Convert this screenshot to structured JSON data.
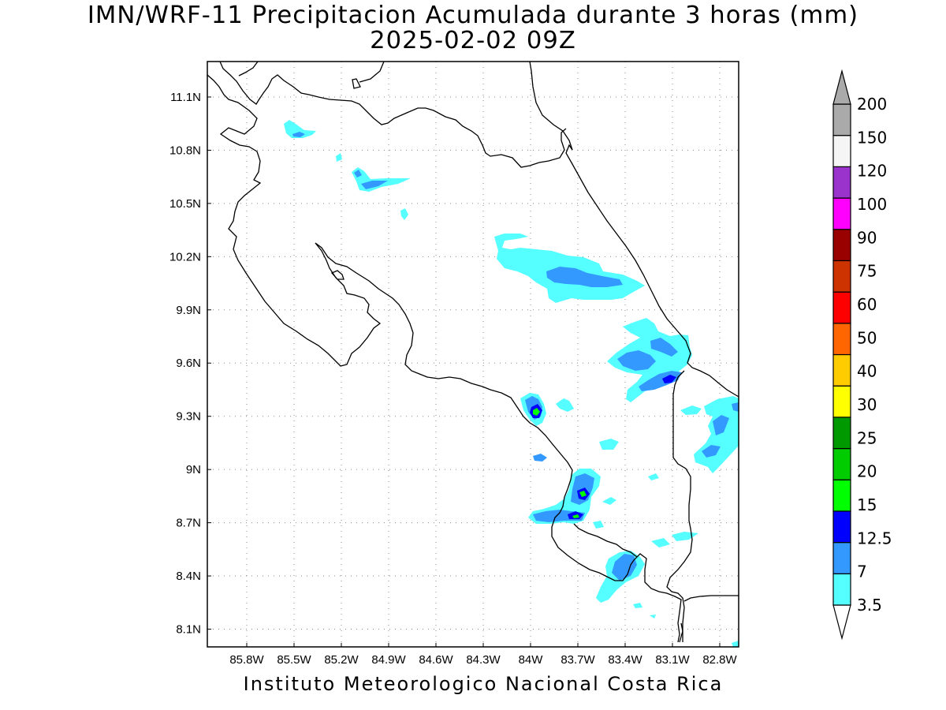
{
  "title": {
    "line1": "IMN/WRF-11 Precipitacion Acumulada durante 3 horas (mm)",
    "line2": "2025-02-02 09Z"
  },
  "credit": "Instituto Meteorologico Nacional Costa Rica",
  "map": {
    "lon_range": [
      -86.05,
      -82.68
    ],
    "lat_range": [
      8.0,
      11.3
    ],
    "grid": "dotted",
    "lon_ticks": [
      {
        "value": -85.8,
        "label": "85.8W"
      },
      {
        "value": -85.5,
        "label": "85.5W"
      },
      {
        "value": -85.2,
        "label": "85.2W"
      },
      {
        "value": -84.9,
        "label": "84.9W"
      },
      {
        "value": -84.6,
        "label": "84.6W"
      },
      {
        "value": -84.3,
        "label": "84.3W"
      },
      {
        "value": -84.0,
        "label": "84W"
      },
      {
        "value": -83.7,
        "label": "83.7W"
      },
      {
        "value": -83.4,
        "label": "83.4W"
      },
      {
        "value": -83.1,
        "label": "83.1W"
      },
      {
        "value": -82.8,
        "label": "82.8W"
      }
    ],
    "lat_ticks": [
      {
        "value": 8.1,
        "label": "8.1N"
      },
      {
        "value": 8.4,
        "label": "8.4N"
      },
      {
        "value": 8.7,
        "label": "8.7N"
      },
      {
        "value": 9.0,
        "label": "9N"
      },
      {
        "value": 9.3,
        "label": "9.3N"
      },
      {
        "value": 9.6,
        "label": "9.6N"
      },
      {
        "value": 9.9,
        "label": "9.9N"
      },
      {
        "value": 10.2,
        "label": "10.2N"
      },
      {
        "value": 10.5,
        "label": "10.5N"
      },
      {
        "value": 10.8,
        "label": "10.8N"
      },
      {
        "value": 11.1,
        "label": "11.1N"
      }
    ]
  },
  "legend": {
    "units": "mm",
    "bins": [
      {
        "label": "3.5",
        "color": "#55ffff"
      },
      {
        "label": "7",
        "color": "#3399ff"
      },
      {
        "label": "12.5",
        "color": "#0000ff"
      },
      {
        "label": "15",
        "color": "#00ff00"
      },
      {
        "label": "20",
        "color": "#00cc00"
      },
      {
        "label": "25",
        "color": "#009900"
      },
      {
        "label": "30",
        "color": "#ffff00"
      },
      {
        "label": "40",
        "color": "#ffcc00"
      },
      {
        "label": "50",
        "color": "#ff6600"
      },
      {
        "label": "60",
        "color": "#ff0000"
      },
      {
        "label": "75",
        "color": "#cc3300"
      },
      {
        "label": "90",
        "color": "#990000"
      },
      {
        "label": "100",
        "color": "#ff00ff"
      },
      {
        "label": "120",
        "color": "#9933cc"
      },
      {
        "label": "150",
        "color": "#f5f5f5"
      },
      {
        "label": "200",
        "color": "#aaaaaa"
      }
    ],
    "bottom_arrow_color": "#ffffff",
    "top_arrow_color": "#aaaaaa"
  },
  "colors": {
    "light_cyan": "#55ffff",
    "medium_blue": "#3399ff",
    "dark_blue": "#0000ff",
    "bright_green": "#00ff00",
    "coastline": "#000000",
    "grid": "#888888"
  }
}
